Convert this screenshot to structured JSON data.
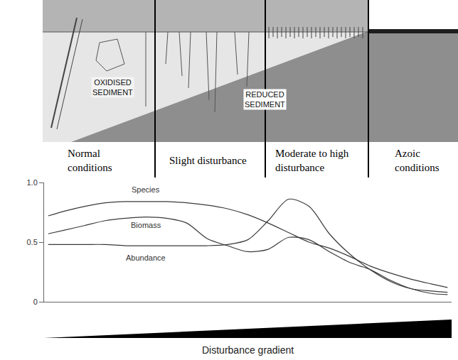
{
  "chart_data": {
    "type": "line",
    "x": [
      1,
      5,
      10,
      15,
      20,
      25,
      30,
      35,
      40,
      45,
      50,
      55,
      60,
      65,
      70,
      75,
      80,
      85,
      90,
      95,
      99
    ],
    "xlim": [
      0,
      100
    ],
    "ylim": [
      0,
      1
    ],
    "yticks": [
      0,
      0.5,
      {
        "value": 1,
        "label": "1.0"
      }
    ],
    "tick_labels": "y",
    "grid": false,
    "x_label": "Disturbance gradient",
    "line_style": "solid",
    "series": [
      {
        "name": "Species",
        "color": "#3a3a3a",
        "values": [
          0.72,
          0.76,
          0.8,
          0.83,
          0.84,
          0.84,
          0.84,
          0.83,
          0.81,
          0.78,
          0.73,
          0.66,
          0.58,
          0.5,
          0.45,
          0.38,
          0.3,
          0.24,
          0.19,
          0.15,
          0.12
        ]
      },
      {
        "name": "Biomass",
        "color": "#3a3a3a",
        "values": [
          0.57,
          0.6,
          0.64,
          0.68,
          0.7,
          0.71,
          0.7,
          0.66,
          0.53,
          0.47,
          0.42,
          0.44,
          0.54,
          0.52,
          0.42,
          0.33,
          0.27,
          0.18,
          0.11,
          0.07,
          0.06
        ]
      },
      {
        "name": "Abundance",
        "color": "#3a3a3a",
        "values": [
          0.48,
          0.48,
          0.48,
          0.48,
          0.47,
          0.47,
          0.47,
          0.47,
          0.47,
          0.48,
          0.52,
          0.68,
          0.86,
          0.8,
          0.57,
          0.4,
          0.27,
          0.17,
          0.11,
          0.09,
          0.08
        ]
      }
    ]
  },
  "diagram": {
    "zones": [
      [
        "Normal",
        "conditions"
      ],
      [
        "Slight disturbance"
      ],
      [
        "Moderate to high",
        "disturbance"
      ],
      [
        "Azoic",
        "conditions"
      ]
    ],
    "oxidised_label": [
      "OXIDISED",
      "SEDIMENT"
    ],
    "reduced_label": [
      "REDUCED",
      "SEDIMENT"
    ]
  }
}
